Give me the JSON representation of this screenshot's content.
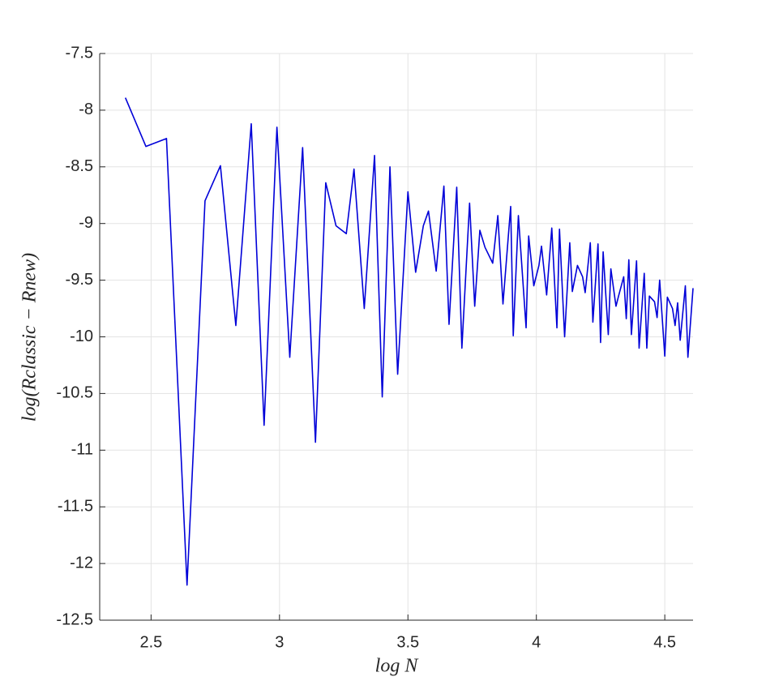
{
  "chart_data": {
    "type": "line",
    "xlabel": "log N",
    "ylabel": "log(Rclassic − Rnew)",
    "x": [
      2.4,
      2.48,
      2.56,
      2.64,
      2.71,
      2.77,
      2.83,
      2.89,
      2.94,
      2.99,
      3.04,
      3.09,
      3.14,
      3.18,
      3.22,
      3.26,
      3.29,
      3.33,
      3.37,
      3.4,
      3.43,
      3.46,
      3.5,
      3.53,
      3.56,
      3.58,
      3.61,
      3.64,
      3.66,
      3.69,
      3.71,
      3.74,
      3.76,
      3.78,
      3.8,
      3.83,
      3.85,
      3.87,
      3.9,
      3.91,
      3.93,
      3.96,
      3.97,
      3.99,
      4.01,
      4.02,
      4.04,
      4.06,
      4.08,
      4.09,
      4.11,
      4.13,
      4.14,
      4.16,
      4.18,
      4.19,
      4.21,
      4.22,
      4.24,
      4.25,
      4.26,
      4.28,
      4.29,
      4.31,
      4.32,
      4.34,
      4.35,
      4.36,
      4.37,
      4.39,
      4.4,
      4.42,
      4.43,
      4.44,
      4.46,
      4.47,
      4.48,
      4.5,
      4.51,
      4.53,
      4.54,
      4.55,
      4.56,
      4.58,
      4.59,
      4.61
    ],
    "series": [
      {
        "color": "#0000d8",
        "values": [
          -7.89,
          -8.32,
          -8.25,
          -12.19,
          -8.8,
          -8.49,
          -9.9,
          -8.12,
          -10.78,
          -8.15,
          -10.18,
          -8.33,
          -10.93,
          -8.64,
          -9.02,
          -9.09,
          -8.52,
          -9.75,
          -8.4,
          -10.53,
          -8.5,
          -10.33,
          -8.72,
          -9.43,
          -9.02,
          -8.89,
          -9.42,
          -8.67,
          -9.89,
          -8.68,
          -10.1,
          -8.82,
          -9.73,
          -9.06,
          -9.21,
          -9.35,
          -8.93,
          -9.71,
          -8.85,
          -9.99,
          -8.93,
          -9.92,
          -9.11,
          -9.55,
          -9.37,
          -9.2,
          -9.63,
          -9.04,
          -9.92,
          -9.05,
          -10.0,
          -9.17,
          -9.6,
          -9.37,
          -9.47,
          -9.61,
          -9.17,
          -9.87,
          -9.18,
          -10.05,
          -9.25,
          -9.98,
          -9.4,
          -9.73,
          -9.64,
          -9.47,
          -9.84,
          -9.32,
          -9.98,
          -9.33,
          -10.1,
          -9.44,
          -10.1,
          -9.64,
          -9.69,
          -9.83,
          -9.5,
          -10.17,
          -9.65,
          -9.75,
          -9.9,
          -9.7,
          -10.03,
          -9.55,
          -10.18,
          -9.57
        ]
      }
    ],
    "xlim": [
      2.3,
      4.61
    ],
    "ylim": [
      -12.5,
      -7.5
    ],
    "xticks": [
      2.5,
      3,
      3.5,
      4,
      4.5
    ],
    "yticks": [
      -12.5,
      -12,
      -11.5,
      -11,
      -10.5,
      -10,
      -9.5,
      -9,
      -8.5,
      -8,
      -7.5
    ],
    "grid": true
  }
}
